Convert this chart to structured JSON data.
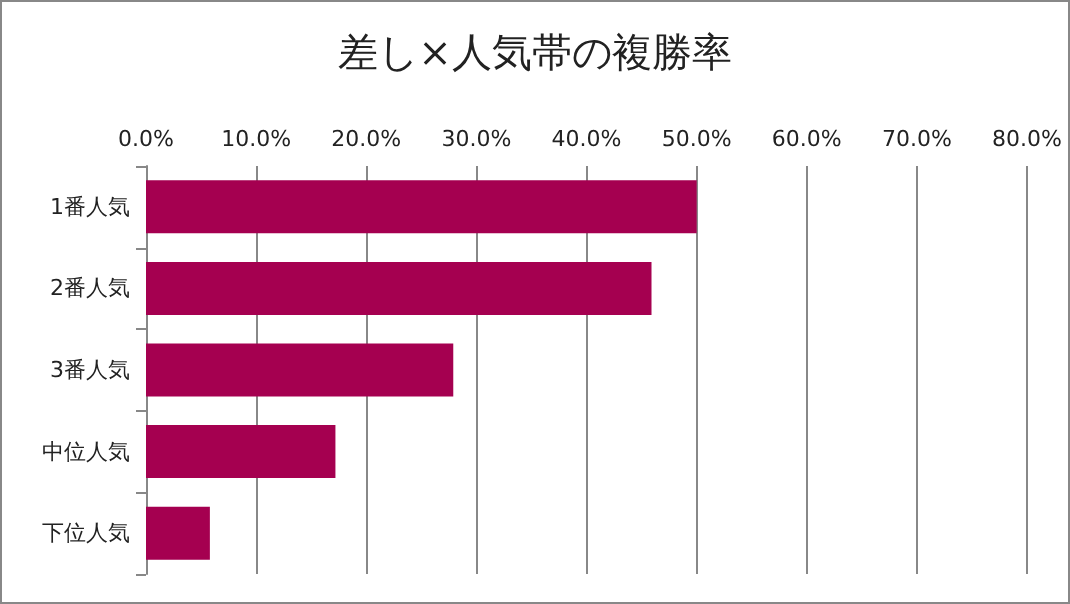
{
  "chart_data": {
    "type": "bar",
    "orientation": "horizontal",
    "title": "差し×人気帯の複勝率",
    "categories": [
      "1番人気",
      "2番人気",
      "3番人気",
      "中位人気",
      "下位人気"
    ],
    "values": [
      50.0,
      45.9,
      27.9,
      17.2,
      5.8
    ],
    "color": "#a50050",
    "xlim": [
      0,
      80
    ],
    "xticks": [
      {
        "value": 0,
        "label": "0.0%"
      },
      {
        "value": 10,
        "label": "10.0%"
      },
      {
        "value": 20,
        "label": "20.0%"
      },
      {
        "value": 30,
        "label": "30.0%"
      },
      {
        "value": 40,
        "label": "40.0%"
      },
      {
        "value": 50,
        "label": "50.0%"
      },
      {
        "value": 60,
        "label": "60.0%"
      },
      {
        "value": 70,
        "label": "70.0%"
      },
      {
        "value": 80,
        "label": "80.0%"
      }
    ],
    "grid": "x"
  }
}
